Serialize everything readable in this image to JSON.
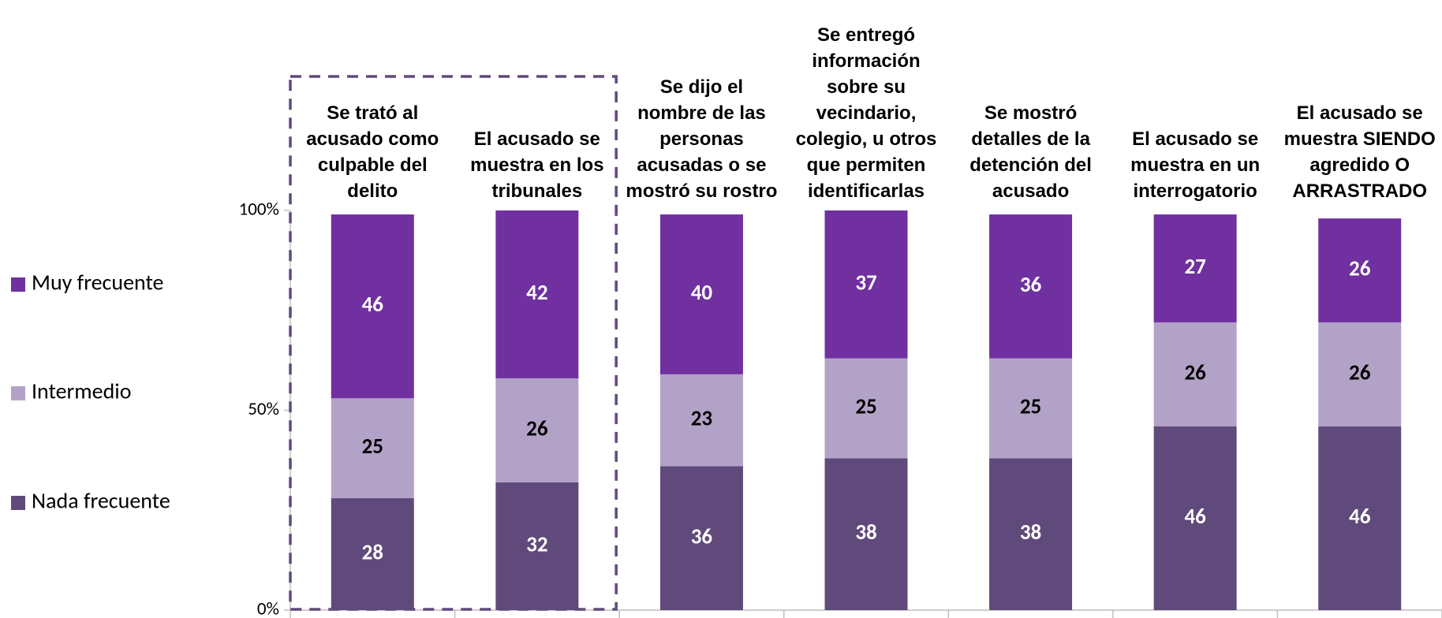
{
  "chart_data": {
    "type": "stacked_bar",
    "categories": [
      "Se trató al acusado como culpable del delito",
      "El acusado se muestra en los tribunales",
      "Se dijo el nombre de las personas acusadas o se mostró su rostro",
      "Se entregó información sobre su vecindario, colegio, u otros que permiten identificarlas",
      "Se mostró detalles de la detención del acusado",
      "El acusado se muestra en un interrogatorio",
      "El acusado se muestra SIENDO agredido O ARRASTRADO"
    ],
    "series": [
      {
        "name": "Nada frecuente",
        "color": "#604a7b",
        "label_color": "#ffffff",
        "values": [
          28,
          32,
          36,
          38,
          38,
          46,
          46
        ]
      },
      {
        "name": "Intermedio",
        "color": "#b3a2c7",
        "label_color": "#000000",
        "values": [
          25,
          26,
          23,
          25,
          25,
          26,
          26
        ]
      },
      {
        "name": "Muy frecuente",
        "color": "#7030a0",
        "label_color": "#ffffff",
        "values": [
          46,
          42,
          40,
          37,
          36,
          27,
          26
        ]
      }
    ],
    "ylim": [
      0,
      100
    ],
    "yticks": [
      {
        "value": 0,
        "label": "0%"
      },
      {
        "value": 50,
        "label": "50%"
      },
      {
        "value": 100,
        "label": "100%"
      }
    ],
    "grid": false,
    "legend": "left"
  }
}
